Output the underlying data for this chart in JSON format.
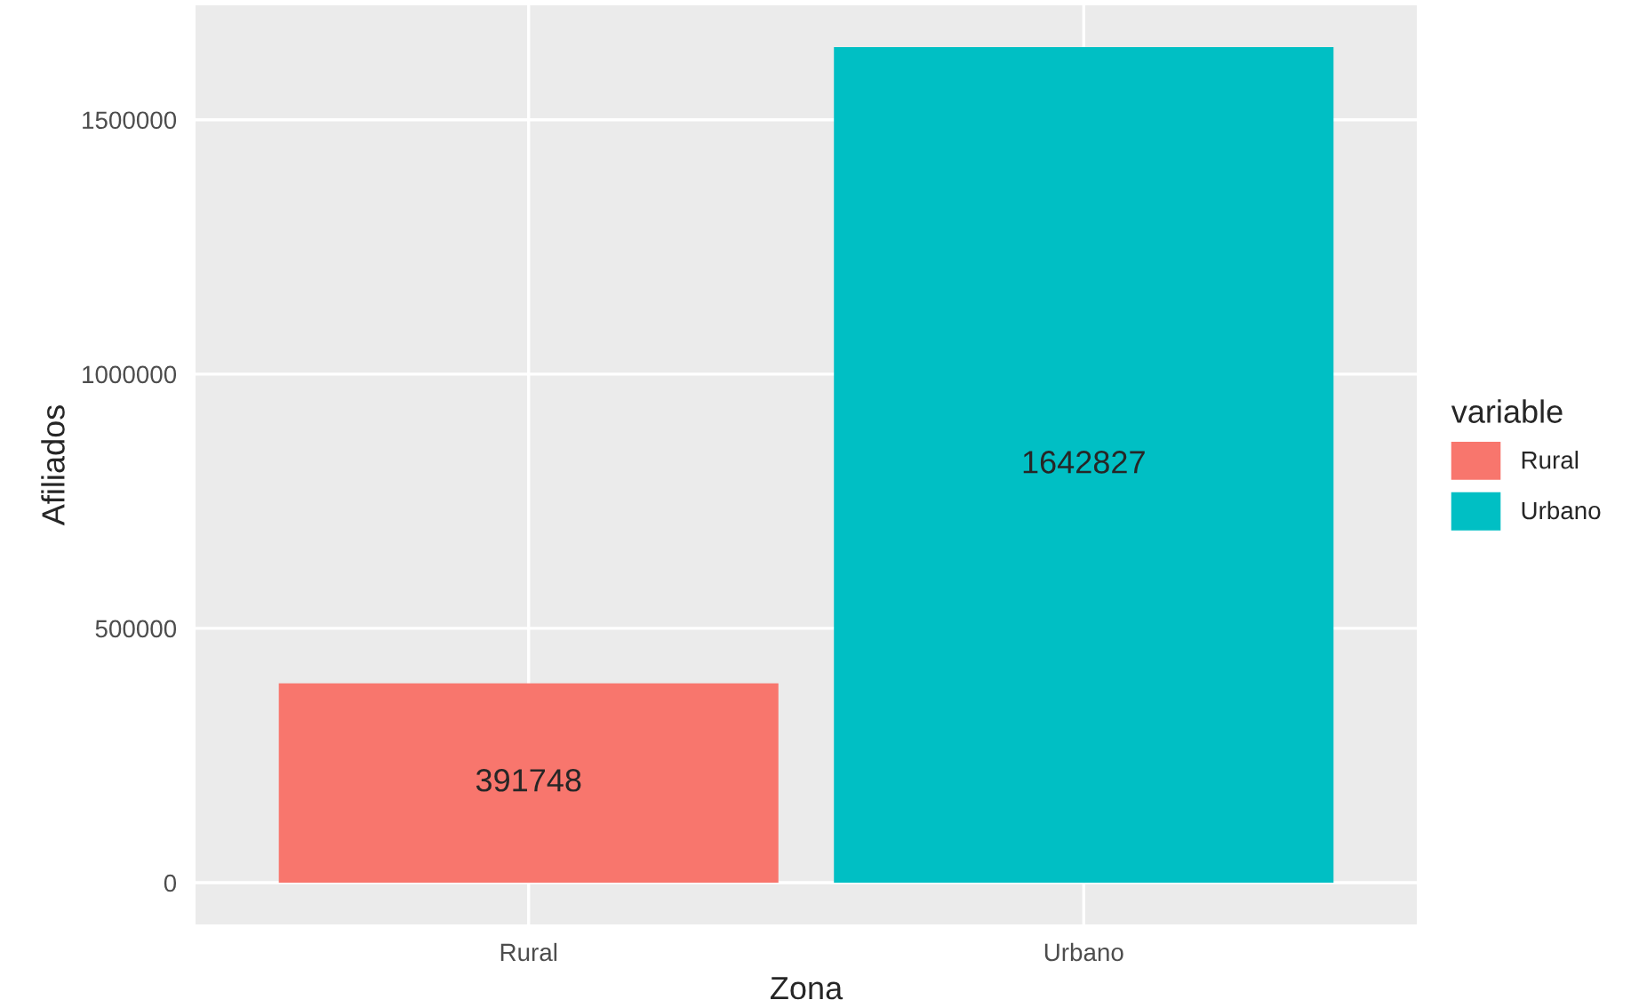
{
  "chart_data": {
    "type": "bar",
    "xlabel": "Zona",
    "ylabel": "Afiliados",
    "legend_title": "variable",
    "categories": [
      "Rural",
      "Urbano"
    ],
    "series": [
      {
        "name": "Rural",
        "color": "#f8766d",
        "values": [
          391748,
          null
        ]
      },
      {
        "name": "Urbano",
        "color": "#00bfc4",
        "values": [
          null,
          1642827
        ]
      }
    ],
    "ylim": [
      -82141,
      1724968
    ],
    "yticks": [
      0,
      500000,
      1000000,
      1500000
    ],
    "grid": true,
    "legend": "right",
    "data_labels": true
  }
}
